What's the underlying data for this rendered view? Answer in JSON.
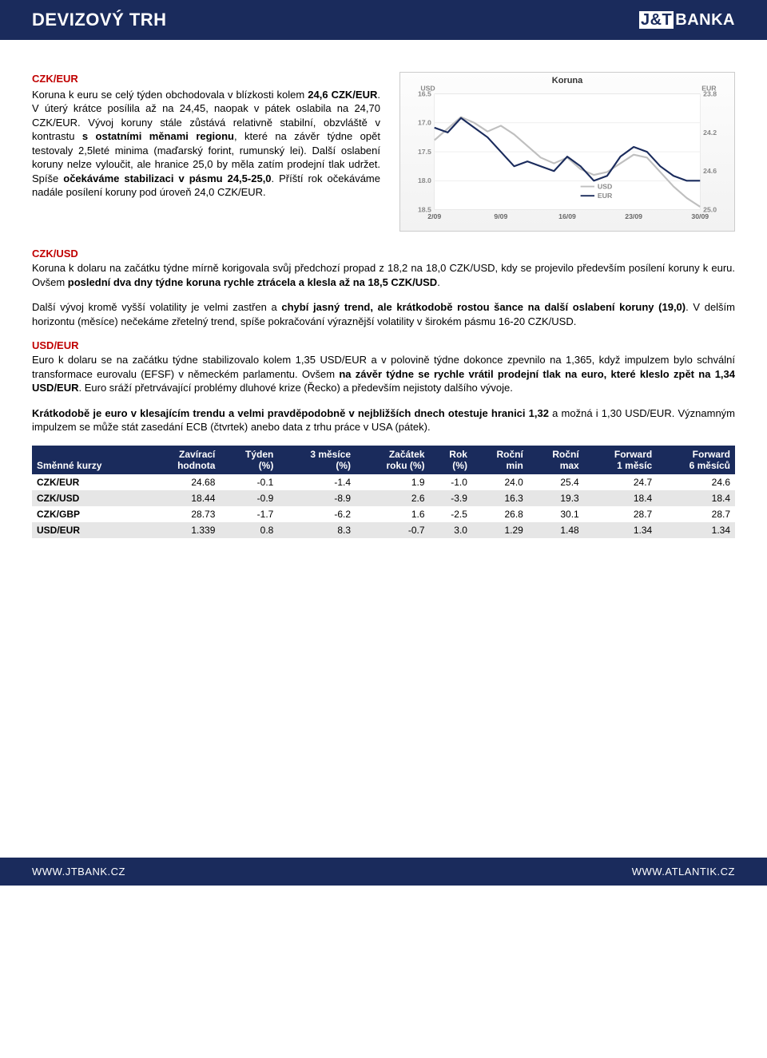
{
  "header": {
    "title": "DEVIZOVÝ TRH",
    "brand_jt": "J&T",
    "brand_banka": "BANKA"
  },
  "section1": {
    "label": "CZK/EUR",
    "text": "Koruna k euru se celý týden obchodovala v blízkosti kolem 24,6 CZK/EUR. V úterý krátce posílila až na 24,45, naopak v pátek oslabila na 24,70 CZK/EUR. Vývoj koruny stále zůstává relativně stabilní, obzvláště v kontrastu s ostatními měnami regionu, které na závěr týdne opět testovaly 2,5leté minima (maďarský forint, rumunský lei). Další oslabení koruny nelze vyloučit, ale hranice 25,0 by měla zatím prodejní tlak udržet. Spíše očekáváme stabilizaci v pásmu 24,5-25,0. Příští rok očekáváme nadále posílení koruny pod úroveň 24,0 CZK/EUR."
  },
  "section2": {
    "label": "CZK/USD",
    "p1": "Koruna k dolaru na začátku týdne mírně korigovala svůj předchozí propad z 18,2 na 18,0 CZK/USD, kdy se projevilo především posílení koruny k euru. Ovšem poslední dva dny týdne koruna rychle ztrácela a klesla až na 18,5 CZK/USD.",
    "p2": "Další vývoj kromě vyšší volatility je velmi zastřen a chybí jasný trend, ale krátkodobě rostou šance na další oslabení koruny (19,0). V delším horizontu (měsíce) nečekáme zřetelný trend, spíše pokračování výraznější volatility v širokém pásmu 16-20 CZK/USD."
  },
  "section3": {
    "label": "USD/EUR",
    "p1": "Euro k dolaru se na začátku týdne stabilizovalo kolem 1,35 USD/EUR a v polovině týdne dokonce zpevnilo na 1,365, když impulzem bylo schvální transformace eurovalu (EFSF) v německém parlamentu. Ovšem na závěr týdne se rychle vrátil prodejní tlak na euro, které kleslo zpět na 1,34 USD/EUR. Euro sráží přetrvávající problémy dluhové krize (Řecko) a především nejistoty dalšího vývoje.",
    "p2": "Krátkodobě je euro v klesajícím trendu a velmi pravděpodobně v nejbližších dnech otestuje hranici 1,32 a možná i 1,30 USD/EUR. Významným impulzem se může stát zasedání ECB (čtvrtek) anebo data z trhu práce v USA (pátek)."
  },
  "chart": {
    "title": "Koruna",
    "left_axis_label": "USD",
    "right_axis_label": "EUR",
    "left_ticks": [
      "16.5",
      "17.0",
      "17.5",
      "18.0",
      "18.5"
    ],
    "right_ticks": [
      "23.8",
      "24.2",
      "24.6",
      "25.0"
    ],
    "x_ticks": [
      "2/09",
      "9/09",
      "16/09",
      "23/09",
      "30/09"
    ],
    "legend_usd": "USD",
    "legend_eur": "EUR",
    "usd_line_color": "#bfbfbf",
    "eur_line_color": "#1a2b5c",
    "grid_color": "#e5e5e5",
    "usd_series": [
      [
        0,
        17.3
      ],
      [
        0.05,
        17.1
      ],
      [
        0.1,
        16.9
      ],
      [
        0.15,
        17.0
      ],
      [
        0.2,
        17.15
      ],
      [
        0.25,
        17.05
      ],
      [
        0.3,
        17.2
      ],
      [
        0.35,
        17.4
      ],
      [
        0.4,
        17.6
      ],
      [
        0.45,
        17.7
      ],
      [
        0.5,
        17.6
      ],
      [
        0.55,
        17.8
      ],
      [
        0.6,
        17.9
      ],
      [
        0.65,
        17.85
      ],
      [
        0.7,
        17.7
      ],
      [
        0.75,
        17.55
      ],
      [
        0.8,
        17.6
      ],
      [
        0.85,
        17.85
      ],
      [
        0.9,
        18.1
      ],
      [
        0.95,
        18.3
      ],
      [
        1.0,
        18.45
      ]
    ],
    "eur_series": [
      [
        0,
        24.15
      ],
      [
        0.05,
        24.2
      ],
      [
        0.1,
        24.05
      ],
      [
        0.15,
        24.15
      ],
      [
        0.2,
        24.25
      ],
      [
        0.25,
        24.4
      ],
      [
        0.3,
        24.55
      ],
      [
        0.35,
        24.5
      ],
      [
        0.4,
        24.55
      ],
      [
        0.45,
        24.6
      ],
      [
        0.5,
        24.45
      ],
      [
        0.55,
        24.55
      ],
      [
        0.6,
        24.7
      ],
      [
        0.65,
        24.65
      ],
      [
        0.7,
        24.45
      ],
      [
        0.75,
        24.35
      ],
      [
        0.8,
        24.4
      ],
      [
        0.85,
        24.55
      ],
      [
        0.9,
        24.65
      ],
      [
        0.95,
        24.7
      ],
      [
        1.0,
        24.7
      ]
    ],
    "left_ylim": [
      16.5,
      18.5
    ],
    "right_ylim": [
      23.8,
      25.0
    ]
  },
  "table": {
    "headers": {
      "c0": "Směnné kurzy",
      "c1a": "Zavírací",
      "c1b": "hodnota",
      "c2a": "Týden",
      "c2b": "(%)",
      "c3a": "3 měsíce",
      "c3b": "(%)",
      "c4a": "Začátek",
      "c4b": "roku (%)",
      "c5a": "Rok",
      "c5b": "(%)",
      "c6a": "Roční",
      "c6b": "min",
      "c7a": "Roční",
      "c7b": "max",
      "c8a": "Forward",
      "c8b": "1 měsíc",
      "c9a": "Forward",
      "c9b": "6 měsíců"
    },
    "rows": [
      {
        "k": "CZK/EUR",
        "v": [
          "24.68",
          "-0.1",
          "-1.4",
          "1.9",
          "-1.0",
          "24.0",
          "25.4",
          "24.7",
          "24.6"
        ]
      },
      {
        "k": "CZK/USD",
        "v": [
          "18.44",
          "-0.9",
          "-8.9",
          "2.6",
          "-3.9",
          "16.3",
          "19.3",
          "18.4",
          "18.4"
        ]
      },
      {
        "k": "CZK/GBP",
        "v": [
          "28.73",
          "-1.7",
          "-6.2",
          "1.6",
          "-2.5",
          "26.8",
          "30.1",
          "28.7",
          "28.7"
        ]
      },
      {
        "k": "USD/EUR",
        "v": [
          "1.339",
          "0.8",
          "8.3",
          "-0.7",
          "3.0",
          "1.29",
          "1.48",
          "1.34",
          "1.34"
        ]
      }
    ]
  },
  "footer": {
    "left": "WWW.JTBANK.CZ",
    "right": "WWW.ATLANTIK.CZ"
  }
}
